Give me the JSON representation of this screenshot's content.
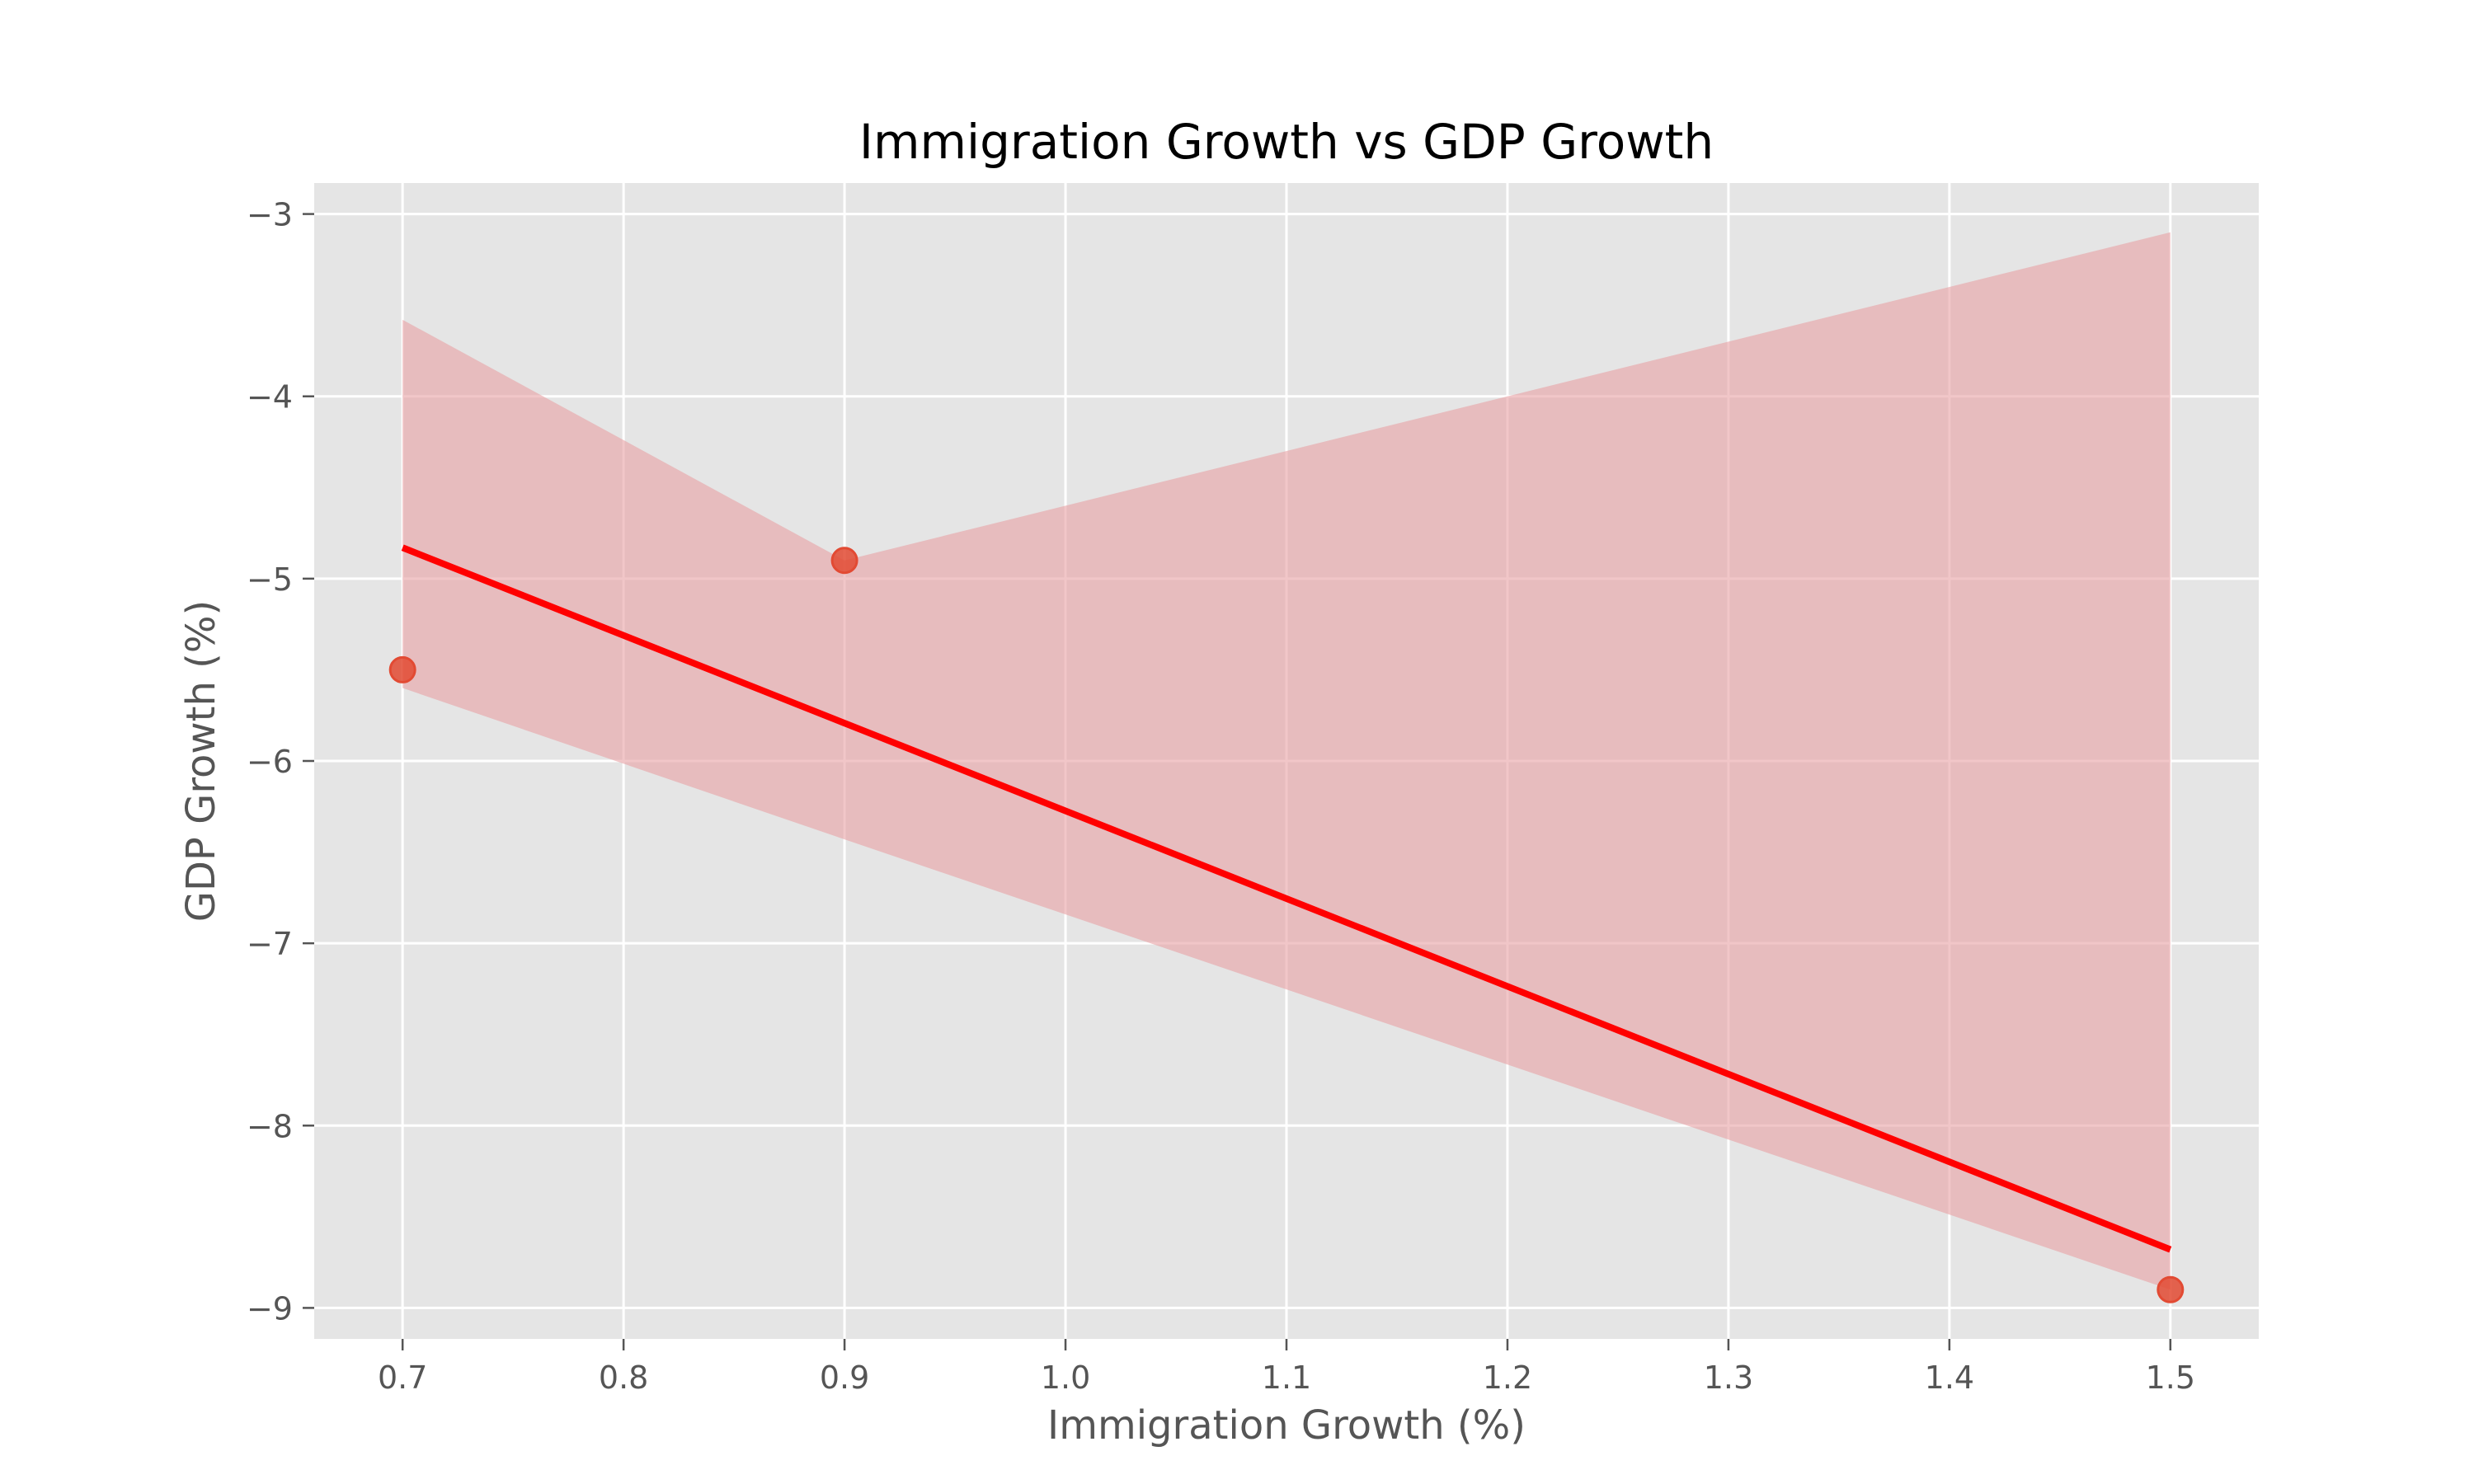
{
  "chart_data": {
    "type": "scatter",
    "title": "Immigration Growth vs GDP Growth",
    "xlabel": "Immigration Growth (%)",
    "ylabel": "GDP Growth (%)",
    "xlim": [
      0.66,
      1.54
    ],
    "ylim": [
      -9.17,
      -2.83
    ],
    "xticks": [
      0.7,
      0.8,
      0.9,
      1.0,
      1.1,
      1.2,
      1.3,
      1.4,
      1.5
    ],
    "xtick_labels": [
      "0.7",
      "0.8",
      "0.9",
      "1.0",
      "1.1",
      "1.2",
      "1.3",
      "1.4",
      "1.5"
    ],
    "yticks": [
      -3,
      -4,
      -5,
      -6,
      -7,
      -8,
      -9
    ],
    "ytick_labels": [
      "−3",
      "−4",
      "−5",
      "−6",
      "−7",
      "−8",
      "−9"
    ],
    "grid": true,
    "points": [
      {
        "x": 0.7,
        "y": -5.5
      },
      {
        "x": 0.9,
        "y": -4.9
      },
      {
        "x": 1.5,
        "y": -8.9
      }
    ],
    "regression_line": {
      "x": [
        0.7,
        1.5
      ],
      "y": [
        -4.83,
        -8.68
      ]
    },
    "confidence_band": {
      "x": [
        0.7,
        0.9,
        1.5
      ],
      "upper": [
        -3.58,
        -4.9,
        -3.1
      ],
      "lower": [
        -5.6,
        -6.43,
        -8.9
      ]
    },
    "colors": {
      "background": "#e5e5e5",
      "point": "#e24a33",
      "line": "#ff0000",
      "band": "#e8a0a4"
    }
  }
}
